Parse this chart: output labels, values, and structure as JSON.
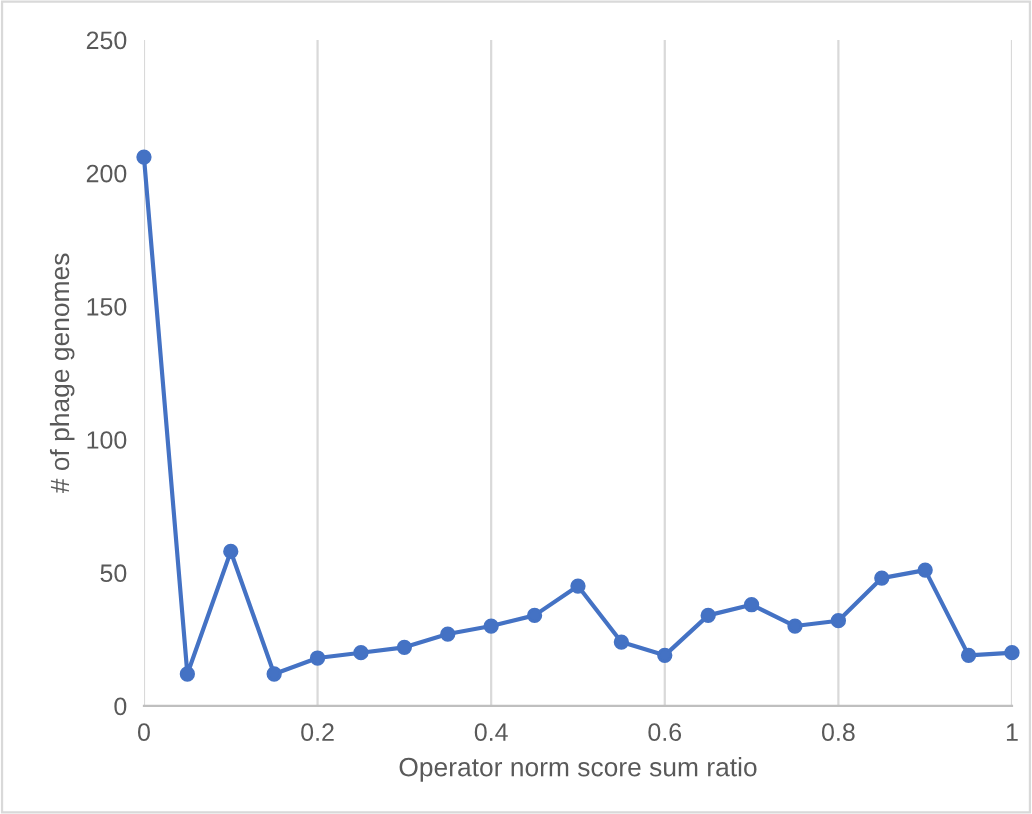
{
  "chart_data": {
    "type": "line",
    "xlabel": "Operator norm score sum ratio",
    "ylabel": "# of phage genomes",
    "x": [
      0,
      0.05,
      0.1,
      0.15,
      0.2,
      0.25,
      0.3,
      0.35,
      0.4,
      0.45,
      0.5,
      0.55,
      0.6,
      0.65,
      0.7,
      0.75,
      0.8,
      0.85,
      0.9,
      0.95,
      1
    ],
    "series": [
      {
        "color": "#4472c4",
        "values": [
          206,
          12,
          58,
          12,
          18,
          20,
          22,
          27,
          30,
          34,
          45,
          24,
          19,
          34,
          38,
          30,
          32,
          48,
          51,
          19,
          20
        ]
      }
    ],
    "xlim": [
      0,
      1
    ],
    "xticks": [
      0,
      0.2,
      0.4,
      0.6,
      0.8,
      1
    ],
    "ylim": [
      0,
      250
    ],
    "yticks": [
      0,
      50,
      100,
      150,
      200,
      250
    ],
    "grid": "x",
    "marker": "circle",
    "line_style": "solid"
  }
}
